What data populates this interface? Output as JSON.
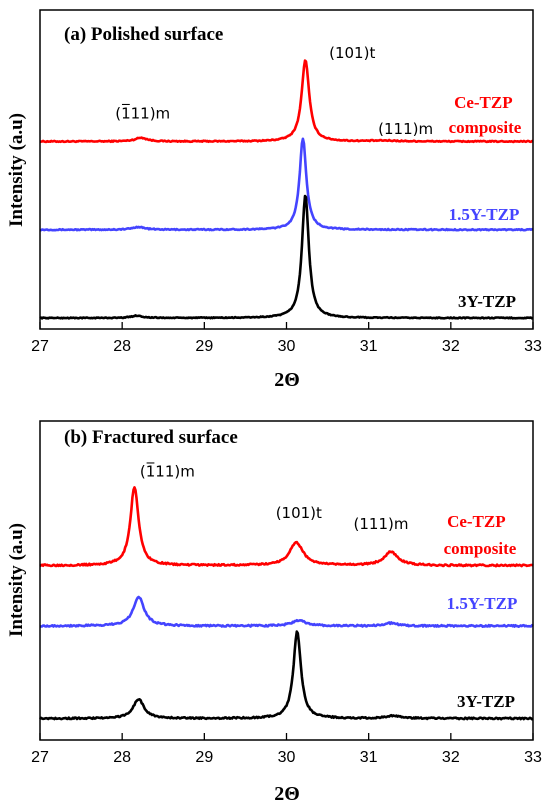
{
  "chart_data": [
    {
      "type": "line",
      "panel": "a",
      "title": "(a) Polished surface",
      "xlabel": "2Θ",
      "ylabel": "Intensity (a.u)",
      "xlim": [
        27,
        33
      ],
      "xticks": [
        27,
        28,
        29,
        30,
        31,
        32,
        33
      ],
      "y_units": "arbitrary",
      "ylim": [
        0,
        310
      ],
      "legend": "inline labels at right of each trace",
      "grid": false,
      "series": [
        {
          "name": "Ce-TZP composite",
          "color": "#ff0000",
          "baseline": 190,
          "noise": 0.6,
          "peaks": [
            {
              "x": 28.23,
              "height": 4,
              "width": 0.09
            },
            {
              "x": 30.23,
              "height": 88,
              "width": 0.055
            },
            {
              "x": 31.2,
              "height": 0.8,
              "width": 0.2
            }
          ]
        },
        {
          "name": "1.5Y-TZP",
          "color": "#4444ff",
          "baseline": 95,
          "noise": 0.6,
          "peaks": [
            {
              "x": 28.2,
              "height": 3,
              "width": 0.09
            },
            {
              "x": 30.2,
              "height": 98,
              "width": 0.05
            }
          ]
        },
        {
          "name": "3Y-TZP",
          "color": "#000000",
          "baseline": 0,
          "noise": 0.5,
          "peaks": [
            {
              "x": 28.18,
              "height": 2.5,
              "width": 0.08
            },
            {
              "x": 30.23,
              "height": 133,
              "width": 0.05
            }
          ]
        }
      ],
      "annotations": [
        {
          "label": "(1̅11)m",
          "x": 28.25,
          "y": 215
        },
        {
          "label": "(101)t",
          "x": 30.8,
          "y": 280
        },
        {
          "label": "(111)m",
          "x": 31.45,
          "y": 198
        }
      ]
    },
    {
      "type": "line",
      "panel": "b",
      "title": "(b) Fractured surface",
      "xlabel": "2Θ",
      "ylabel": "Intensity (a.u)",
      "xlim": [
        27,
        33
      ],
      "xticks": [
        27,
        28,
        29,
        30,
        31,
        32,
        33
      ],
      "y_units": "arbitrary",
      "ylim": [
        0,
        310
      ],
      "legend": "inline labels at right of each trace",
      "grid": false,
      "series": [
        {
          "name": "Ce-TZP composite",
          "color": "#ff0000",
          "baseline": 173,
          "noise": 0.9,
          "peaks": [
            {
              "x": 28.15,
              "height": 86,
              "width": 0.06
            },
            {
              "x": 30.12,
              "height": 25,
              "width": 0.1
            },
            {
              "x": 31.27,
              "height": 15,
              "width": 0.1
            }
          ]
        },
        {
          "name": "1.5Y-TZP",
          "color": "#4444ff",
          "baseline": 107,
          "noise": 0.9,
          "peaks": [
            {
              "x": 28.2,
              "height": 32,
              "width": 0.08
            },
            {
              "x": 30.15,
              "height": 6,
              "width": 0.1
            },
            {
              "x": 31.27,
              "height": 3,
              "width": 0.1
            }
          ]
        },
        {
          "name": "3Y-TZP",
          "color": "#000000",
          "baseline": 6,
          "noise": 0.8,
          "peaks": [
            {
              "x": 28.2,
              "height": 21,
              "width": 0.08
            },
            {
              "x": 30.13,
              "height": 95,
              "width": 0.055
            },
            {
              "x": 31.3,
              "height": 3,
              "width": 0.1
            }
          ]
        }
      ],
      "annotations": [
        {
          "label": "(1̅11)m",
          "x": 28.55,
          "y": 270
        },
        {
          "label": "(101)t",
          "x": 30.15,
          "y": 225
        },
        {
          "label": "(111)m",
          "x": 31.15,
          "y": 213
        }
      ]
    }
  ]
}
